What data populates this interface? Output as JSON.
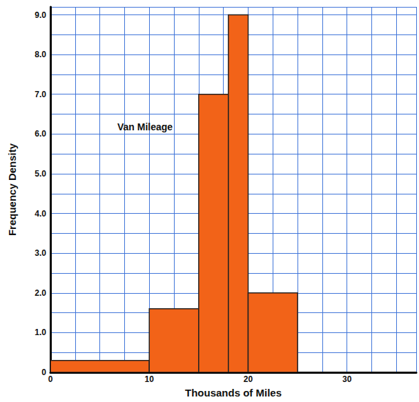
{
  "chart_data": {
    "type": "histogram",
    "title": "Van Mileage",
    "bins": [
      0,
      10,
      15,
      18,
      20,
      25
    ],
    "values": [
      0.3,
      1.6,
      7,
      9,
      2
    ],
    "color": "#f26318",
    "xlabel": "Thousands of Miles",
    "ylabel": "Frequency Density",
    "xlim": [
      0,
      37
    ],
    "xticks": [
      0,
      10,
      20,
      30
    ],
    "ylim": [
      0,
      9.2
    ],
    "yticks": [
      0,
      {
        "value": 1,
        "label": "1.0"
      },
      {
        "value": 2,
        "label": "2.0"
      },
      {
        "value": 3,
        "label": "3.0"
      },
      {
        "value": 4,
        "label": "4.0"
      },
      {
        "value": 5,
        "label": "5.0"
      },
      {
        "value": 6,
        "label": "6.0"
      },
      {
        "value": 7,
        "label": "7.0"
      },
      {
        "value": 8,
        "label": "8.0"
      },
      {
        "value": 9,
        "label": "9.0"
      }
    ],
    "grid": true
  }
}
